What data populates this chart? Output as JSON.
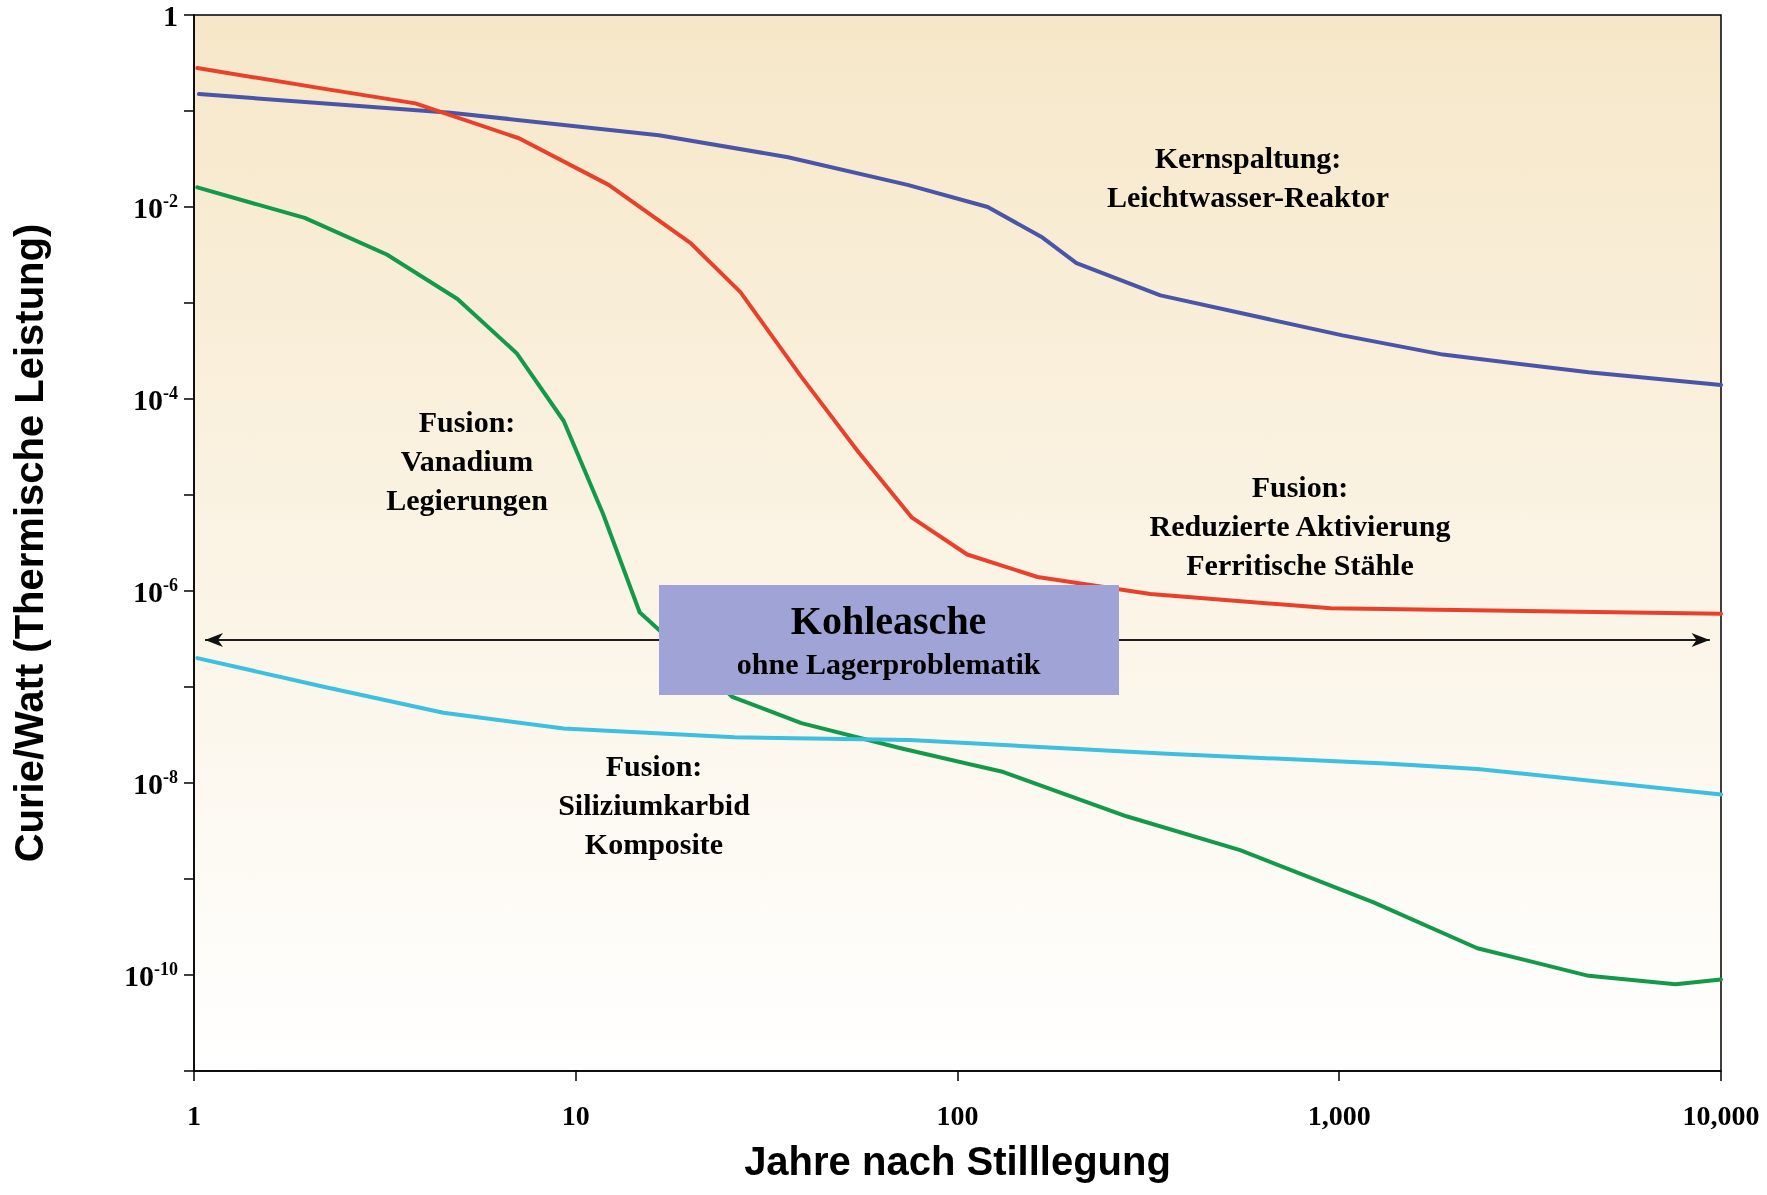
{
  "chart_data": {
    "type": "line",
    "xlabel": "Jahre nach Stilllegung",
    "ylabel": "Curie/Watt (Thermische Leistung)",
    "log": "xy",
    "grid": false,
    "legend": false,
    "marker": "none",
    "line_style": "solid",
    "xlim": [
      1,
      10000
    ],
    "xticks": [
      1,
      10,
      100,
      {
        "value": 1000,
        "label": "1,000"
      },
      {
        "value": 10000,
        "label": "10,000"
      }
    ],
    "ylim": [
      1e-11,
      1
    ],
    "yticks": [
      {
        "value": 1e-11,
        "label": null
      },
      {
        "value": 1e-10,
        "label": "10$^{-10}$"
      },
      {
        "value": 1e-09,
        "label": null
      },
      {
        "value": 1e-08,
        "label": "10$^{-8}$"
      },
      {
        "value": 1e-07,
        "label": null
      },
      {
        "value": 1e-06,
        "label": "10$^{-6}$"
      },
      {
        "value": 1e-05,
        "label": null
      },
      {
        "value": 0.0001,
        "label": "10$^{-4}$"
      },
      {
        "value": 0.001,
        "label": null
      },
      {
        "value": 0.01,
        "label": "10$^{-2}$"
      },
      {
        "value": 0.1,
        "label": null
      },
      1
    ],
    "series": [
      {
        "name": "Kernspaltung:\nLeichtwasser-Reaktor",
        "color": "#4a55a8",
        "x": [
          1.03,
          4.7,
          16.5,
          36,
          74,
          120,
          167,
          205,
          340,
          1020,
          1870,
          4500,
          10000
        ],
        "values": [
          0.15,
          0.096,
          0.056,
          0.033,
          0.017,
          0.01,
          0.0048,
          0.0026,
          0.0012,
          0.00046,
          0.00029,
          0.00019,
          0.00014
        ]
      },
      {
        "name": "Fusion:\nReduzierte Aktivierung\nFerritische Stähle",
        "color": "#e8402a",
        "x": [
          1.02,
          2.2,
          3.8,
          7.1,
          12.2,
          20,
          27,
          39,
          55,
          76,
          106,
          162,
          320,
          950,
          10000
        ],
        "values": [
          0.28,
          0.17,
          0.12,
          0.052,
          0.017,
          0.0042,
          0.0013,
          0.00017,
          2.8e-05,
          5.8e-06,
          2.4e-06,
          1.4e-06,
          9.3e-07,
          6.6e-07,
          5.8e-07
        ]
      },
      {
        "name": "Fusion:\nVanadium\nLegierungen",
        "color": "#12994a",
        "x": [
          1.02,
          1.95,
          3.2,
          4.9,
          7,
          9.3,
          11.8,
          14.7,
          18.3,
          25.7,
          39,
          71,
          132,
          277,
          550,
          1230,
          2300,
          4500,
          7600,
          10000
        ],
        "values": [
          0.016,
          0.0077,
          0.0032,
          0.0011,
          0.0003,
          5.9e-05,
          6.3e-06,
          6e-07,
          null,
          7.9e-08,
          4.2e-08,
          2.3e-08,
          1.3e-08,
          4.5e-09,
          2e-09,
          5.7e-10,
          1.9e-10,
          9.8e-11,
          8e-11,
          9e-11
        ]
      },
      {
        "name": "Fusion:\nSiliziumkarbid\nKomposite",
        "color": "#3cbfe0",
        "x": [
          1.02,
          2.2,
          4.5,
          9.3,
          26,
          75,
          365,
          1320,
          2300,
          10000
        ],
        "values": [
          2e-07,
          1e-07,
          5.4e-08,
          3.7e-08,
          3e-08,
          2.8e-08,
          2e-08,
          1.6e-08,
          1.4e-08,
          7.6e-09
        ]
      }
    ],
    "ref_lines": [
      {
        "axis": "y",
        "value": 3.1e-07,
        "color": "#111111"
      }
    ],
    "annotations": [
      {
        "text": "Kohleasche\nohne Lagerproblematik",
        "x": 66,
        "y": 3.1e-07
      }
    ]
  }
}
